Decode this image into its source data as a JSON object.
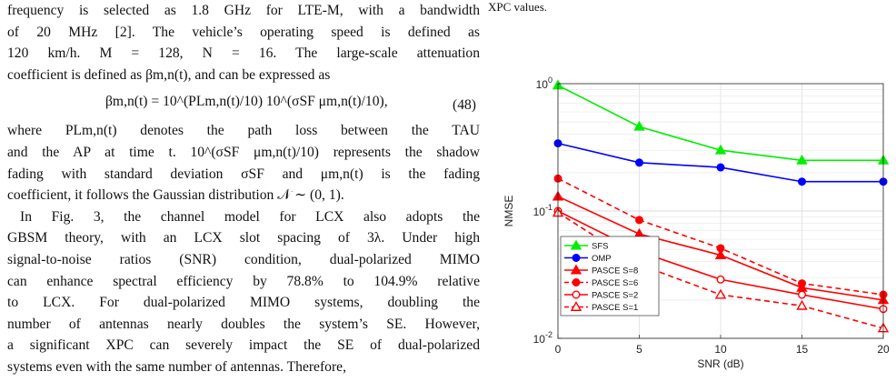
{
  "left_column": {
    "l1": "frequency is selected as 1.8 GHz for LTE-M, with a bandwidth",
    "l2": "of 20 MHz [2]. The vehicle’s operating speed is defined as",
    "l3": "120 km/h. M = 128, N = 16. The large-scale attenuation",
    "l4": "coefficient is defined as βm,n(t), and can be expressed as",
    "equation": "βm,n(t) = 10^(PLm,n(t)/10) 10^(σSF μm,n(t)/10),",
    "equation_number": "(48)",
    "l5": "where PLm,n(t) denotes the path loss between the TAU",
    "l6": "and the AP at time t. 10^(σSF μm,n(t)/10) represents the shadow",
    "l7": "fading with standard deviation σSF and μm,n(t) is the fading",
    "l8": "coefficient, it follows the Gaussian distribution 𝒩 ∼ (0, 1).",
    "p2_l1": "In Fig. 3, the channel model for LCX also adopts the",
    "p2_l2": "GBSM theory, with an LCX slot spacing of 3λ. Under high",
    "p2_l3": "signal-to-noise ratios (SNR) condition, dual-polarized MIMO",
    "p2_l4": "can enhance spectral efficiency by 78.8% to 104.9% relative",
    "p2_l5": "to LCX. For dual-polarized MIMO systems, doubling the",
    "p2_l6": "number of antennas nearly doubles the system’s SE. However,",
    "p2_l7": "a significant XPC can severely impact the SE of dual-polarized",
    "p2_l8": "systems even with the same number of antennas. Therefore,"
  },
  "caption_tail": "XPC values.",
  "chart_data": {
    "type": "line",
    "y_scale": "log",
    "x": [
      0,
      5,
      10,
      15,
      20
    ],
    "xlim": [
      0,
      20
    ],
    "ylim": [
      0.01,
      1
    ],
    "xlabel": "SNR (dB)",
    "ylabel": "NMSE",
    "x_ticks": [
      "0",
      "5",
      "10",
      "15",
      "20"
    ],
    "y_ticks": [
      {
        "base": "10",
        "exp": "0",
        "value": 1
      },
      {
        "base": "10",
        "exp": "-1",
        "value": 0.1
      },
      {
        "base": "10",
        "exp": "-2",
        "value": 0.01
      }
    ],
    "grid": true,
    "legend_position": "bottom-left",
    "series": [
      {
        "name": "SFS",
        "color": "#00ee00",
        "dash": "solid",
        "marker": "triangle",
        "values": [
          0.97,
          0.46,
          0.3,
          0.25,
          0.25
        ]
      },
      {
        "name": "OMP",
        "color": "#0000ff",
        "dash": "solid",
        "marker": "circle-filled",
        "values": [
          0.34,
          0.24,
          0.22,
          0.17,
          0.17
        ]
      },
      {
        "name": "PASCE S=8",
        "color": "#ff0000",
        "dash": "solid",
        "marker": "triangle",
        "values": [
          0.13,
          0.066,
          0.045,
          0.025,
          0.02
        ]
      },
      {
        "name": "PASCE S=6",
        "color": "#ff0000",
        "dash": "dashed",
        "marker": "circle-filled",
        "values": [
          0.18,
          0.085,
          0.051,
          0.027,
          0.022
        ]
      },
      {
        "name": "PASCE S=2",
        "color": "#ff0000",
        "dash": "solid",
        "marker": "circle-open",
        "values": [
          0.1,
          0.048,
          0.029,
          0.022,
          0.017
        ]
      },
      {
        "name": "PASCE S=1",
        "color": "#ff0000",
        "dash": "dashed",
        "marker": "triangle-open",
        "values": [
          0.097,
          0.038,
          0.022,
          0.018,
          0.012
        ]
      }
    ]
  }
}
